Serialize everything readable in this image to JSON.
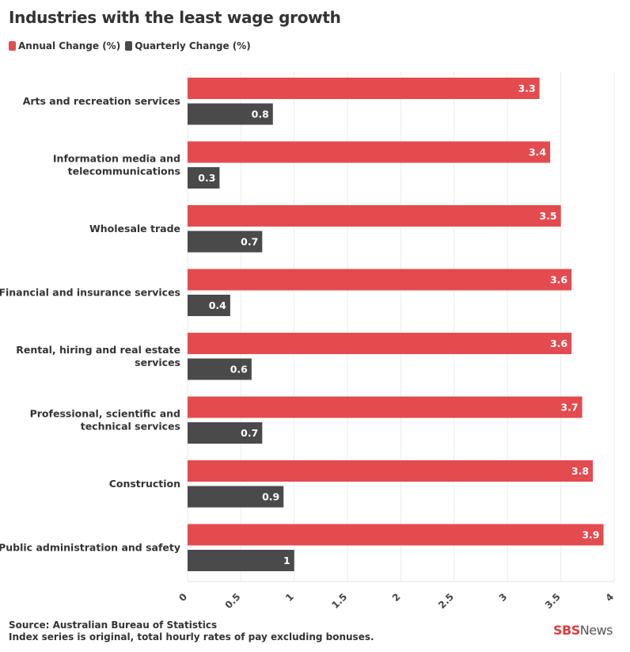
{
  "title": "Industries with the least wage growth",
  "legend": [
    {
      "label": "Annual Change (%)",
      "color": "#e34b4f"
    },
    {
      "label": "Quarterly Change (%)",
      "color": "#4a4a4a"
    }
  ],
  "source": {
    "line1": "Source: Australian Bureau of Statistics",
    "line2": "Index series is original, total hourly rates of pay excluding bonuses."
  },
  "logo": {
    "brand": "SBS",
    "suffix": "News"
  },
  "chart_data": {
    "type": "bar",
    "orientation": "horizontal",
    "title": "Industries with the least wage growth",
    "categories": [
      "Arts and recreation services",
      "Information media and telecommunications",
      "Wholesale trade",
      "Financial and insurance services",
      "Rental, hiring and real estate services",
      "Professional, scientific and technical services",
      "Construction",
      "Public administration and safety"
    ],
    "series": [
      {
        "name": "Annual Change (%)",
        "color": "#e34b4f",
        "values": [
          3.3,
          3.4,
          3.5,
          3.6,
          3.6,
          3.7,
          3.8,
          3.9
        ]
      },
      {
        "name": "Quarterly Change (%)",
        "color": "#4a4a4a",
        "values": [
          0.8,
          0.3,
          0.7,
          0.4,
          0.6,
          0.7,
          0.9,
          1
        ]
      }
    ],
    "xlim": [
      0,
      4
    ],
    "xticks": [
      "0",
      "0.5",
      "1",
      "1.5",
      "2",
      "2.5",
      "3",
      "3.5",
      "4"
    ],
    "grid": true,
    "legend_position": "top-left",
    "data_labels": true
  }
}
